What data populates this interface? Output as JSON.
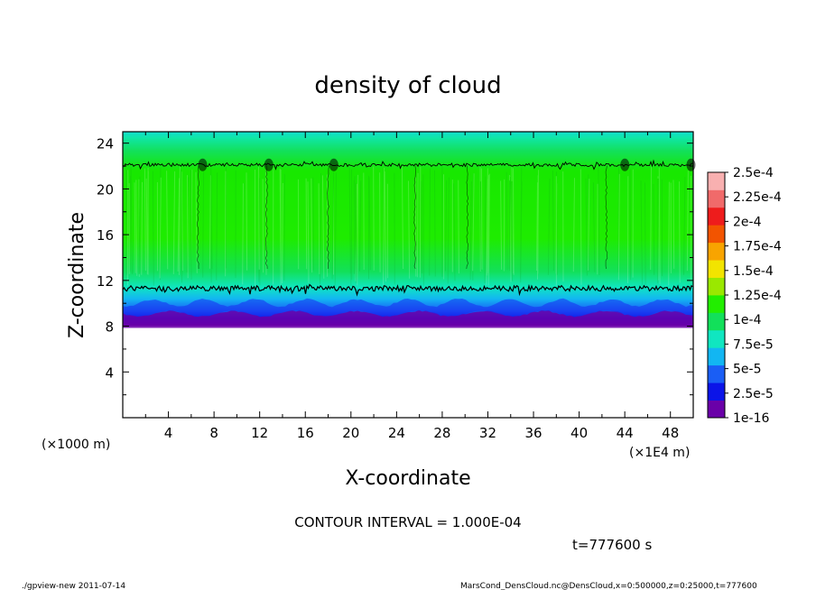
{
  "chart_data": {
    "type": "heatmap",
    "title": "density of cloud",
    "xlabel": "X-coordinate",
    "ylabel": "Z-coordinate",
    "x_unit_left": "(×1000 m)",
    "x_unit_right": "(×1E4 m)",
    "x_ticks": [
      "4",
      "8",
      "12",
      "16",
      "20",
      "24",
      "28",
      "32",
      "36",
      "40",
      "44",
      "48"
    ],
    "y_ticks": [
      "4",
      "8",
      "12",
      "16",
      "20",
      "24"
    ],
    "xlim": [
      0,
      50
    ],
    "ylim": [
      0,
      25
    ],
    "cloud_base": 8,
    "cloud_top": 25,
    "black_contours": [
      11.3,
      22.1
    ],
    "colorbar": {
      "labels": [
        "1e-16",
        "2.5e-5",
        "5e-5",
        "7.5e-5",
        "1e-4",
        "1.25e-4",
        "1.5e-4",
        "1.75e-4",
        "2e-4",
        "2.25e-4",
        "2.5e-4"
      ],
      "colors": [
        "#6a00a8",
        "#0b14e8",
        "#1a5ef5",
        "#12b6f2",
        "#10e6c0",
        "#12e05a",
        "#22ee00",
        "#9ae800",
        "#f2e400",
        "#f8a400",
        "#f25400",
        "#ee1c1c",
        "#f06a6a",
        "#f8b0b0"
      ]
    },
    "contour_interval": "CONTOUR INTERVAL = 1.000E-04",
    "time_label": "t=777600 s"
  },
  "footer": {
    "left": "./gpview-new   2011-07-14",
    "right": "MarsCond_DensCloud.nc@DensCloud,x=0:500000,z=0:25000,t=777600"
  }
}
